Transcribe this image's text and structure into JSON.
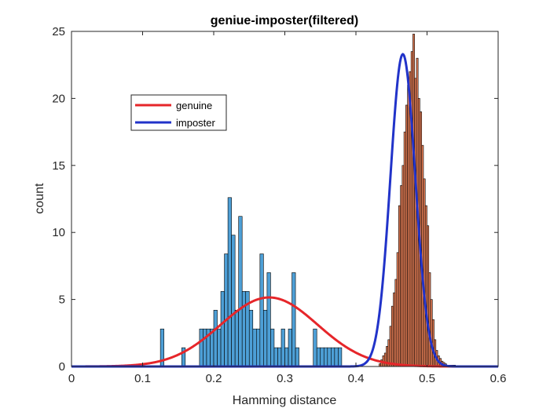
{
  "chart_data": {
    "type": "histogram",
    "title": "geniue-imposter(filtered)",
    "xlabel": "Hamming distance",
    "ylabel": "count",
    "xlim": [
      0,
      0.6
    ],
    "ylim": [
      0,
      25
    ],
    "xticks": [
      "0",
      "0.1",
      "0.2",
      "0.3",
      "0.4",
      "0.5",
      "0.6"
    ],
    "yticks": [
      "0",
      "5",
      "10",
      "15",
      "20",
      "25"
    ],
    "grid": false,
    "legend_position": "upper-left",
    "histograms": [
      {
        "name": "genuine",
        "color": "#4d9fd6",
        "bin_start": 0.125,
        "bin_width": 0.005,
        "counts": [
          2.8,
          0,
          0,
          0,
          0,
          0,
          1.4,
          0,
          0,
          0,
          0,
          2.8,
          2.8,
          2.8,
          2.8,
          4.2,
          2.8,
          5.6,
          8.4,
          12.6,
          9.8,
          4.2,
          11.2,
          5.6,
          5.6,
          4.2,
          2.8,
          2.8,
          8.4,
          4.2,
          7,
          2.8,
          1.4,
          1.4,
          2.8,
          1.4,
          2.8,
          7,
          1.4,
          0,
          0,
          0,
          0,
          2.8,
          1.4,
          1.4,
          1.4,
          1.4,
          1.4,
          1.4,
          1.4
        ]
      },
      {
        "name": "imposter",
        "color": "#e07b54",
        "bin_start": 0.395,
        "bin_width": 0.0025,
        "counts": [
          0,
          0,
          0,
          0,
          0,
          0,
          0,
          0,
          0,
          0,
          0,
          0,
          0,
          0,
          0,
          0.2,
          0.5,
          0.8,
          1,
          1.5,
          2,
          3,
          4.5,
          5.5,
          6.5,
          8.5,
          12,
          13.5,
          15,
          17.5,
          19.5,
          21,
          22,
          23.5,
          24.8,
          21.5,
          23,
          20,
          19,
          16.5,
          14,
          12,
          10.5,
          7,
          5,
          3.5,
          2,
          1.2,
          0.8,
          0.6,
          0.4,
          0.3,
          0.2,
          0.1,
          0.1,
          0.1,
          0.1,
          0.1
        ]
      }
    ],
    "fitted_curves": [
      {
        "name": "genuine",
        "color": "#e6262a",
        "distribution": "normal",
        "mean": 0.278,
        "std": 0.068,
        "peak": 5.15
      },
      {
        "name": "imposter",
        "color": "#2133c9",
        "distribution": "normal",
        "mean": 0.466,
        "std": 0.0175,
        "peak": 23.3
      }
    ],
    "legend": [
      {
        "label": "genuine",
        "color": "#e6262a"
      },
      {
        "label": "imposter",
        "color": "#2133c9"
      }
    ]
  }
}
